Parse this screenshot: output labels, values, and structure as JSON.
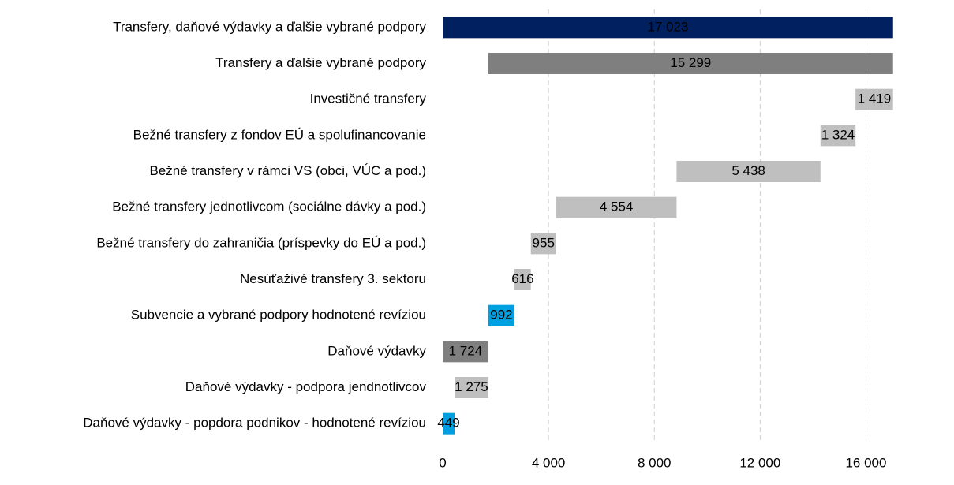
{
  "chart_data": {
    "type": "waterfall",
    "categories": [
      "Transfery, daňové výdavky a ďalšie vybrané podpory",
      "Transfery a ďalšie vybrané podpory",
      "Investičné transfery",
      "Bežné transfery z fondov EÚ a spolufinancovanie",
      "Bežné transfery v rámci VS (obci, VÚC a pod.)",
      "Bežné transfery jednotlivcom (sociálne dávky a pod.)",
      "Bežné transfery do zahraničia (príspevky do EÚ a pod.)",
      "Nesúťaživé transfery 3. sektoru",
      "Subvencie a vybrané podpory hodnotené revíziou",
      "Daňové výdavky",
      "Daňové výdavky - podpora jendnotlivcov",
      "Daňové výdavky - popdora podnikov - hodnotené revíziou"
    ],
    "values": [
      17023,
      15299,
      1419,
      1324,
      5438,
      4554,
      955,
      616,
      992,
      1724,
      1275,
      449
    ],
    "value_labels": [
      "17 023",
      "15 299",
      "1 419",
      "1 324",
      "5 438",
      "4 554",
      "955",
      "616",
      "992",
      "1 724",
      "1 275",
      "449"
    ],
    "bar_kind": [
      "total",
      "sum",
      "item",
      "item",
      "item",
      "item",
      "item",
      "item",
      "item",
      "total",
      "item",
      "item"
    ],
    "colors": [
      "#002060",
      "#7f7f7f",
      "#bfbfbf",
      "#bfbfbf",
      "#bfbfbf",
      "#bfbfbf",
      "#bfbfbf",
      "#bfbfbf",
      "#00a0e0",
      "#7f7f7f",
      "#bfbfbf",
      "#00a0e0"
    ],
    "xlim": [
      0,
      17000
    ],
    "xticks": [
      0,
      {
        "value": 4000,
        "label": "4 000"
      },
      {
        "value": 8000,
        "label": "8 000"
      },
      {
        "value": 12000,
        "label": "12 000"
      },
      {
        "value": 16000,
        "label": "16 000"
      }
    ],
    "grid": true
  }
}
